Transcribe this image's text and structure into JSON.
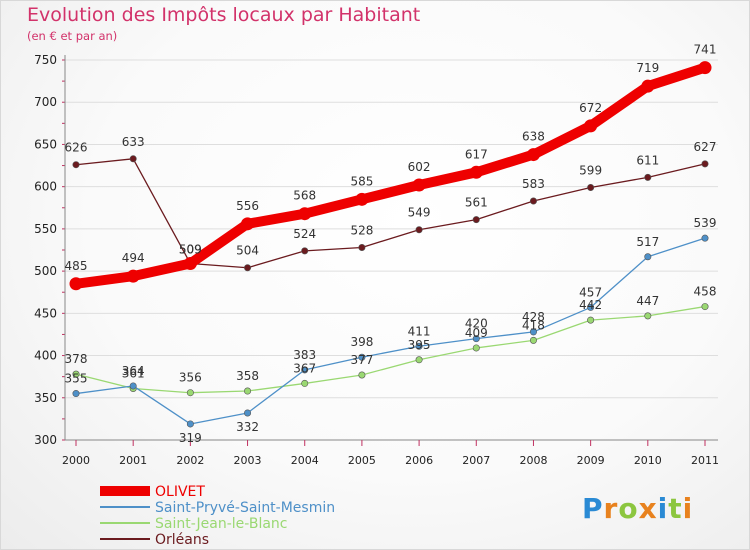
{
  "chart_data": {
    "type": "line",
    "title": "Evolution des Impôts locaux par Habitant",
    "subtitle": "(en € et par an)",
    "xlabel": "",
    "ylabel": "",
    "categories": [
      "2000",
      "2001",
      "2002",
      "2003",
      "2004",
      "2005",
      "2006",
      "2007",
      "2008",
      "2009",
      "2010",
      "2011"
    ],
    "ylim": [
      300,
      750
    ],
    "yticks": [
      300,
      350,
      400,
      450,
      500,
      550,
      600,
      650,
      700,
      750
    ],
    "grid": true,
    "legend_position": "bottom-left",
    "series": [
      {
        "name": "Orléans",
        "color": "#6b1b1f",
        "values": [
          626,
          633,
          509,
          504,
          524,
          528,
          549,
          561,
          583,
          599,
          611,
          627
        ]
      },
      {
        "name": "Saint-Jean-le-Blanc",
        "color": "#9ad872",
        "values": [
          378,
          361,
          356,
          358,
          367,
          377,
          395,
          409,
          418,
          442,
          447,
          458
        ]
      },
      {
        "name": "Saint-Pryvé-Saint-Mesmin",
        "color": "#4e90c8",
        "values": [
          355,
          364,
          319,
          332,
          383,
          398,
          411,
          420,
          428,
          457,
          517,
          539
        ]
      },
      {
        "name": "OLIVET",
        "color": "#ee0000",
        "values": [
          485,
          494,
          509,
          556,
          568,
          585,
          602,
          617,
          638,
          672,
          719,
          741
        ]
      }
    ]
  },
  "branding": {
    "logo_text": "Proxiti",
    "logo_letters": [
      "P",
      "r",
      "o",
      "x",
      "i",
      "t",
      "i"
    ],
    "logo_colors": [
      "#2a8ad4",
      "#e8821e",
      "#8cc63f",
      "#e8821e",
      "#2a8ad4",
      "#8cc63f",
      "#e8821e"
    ]
  }
}
